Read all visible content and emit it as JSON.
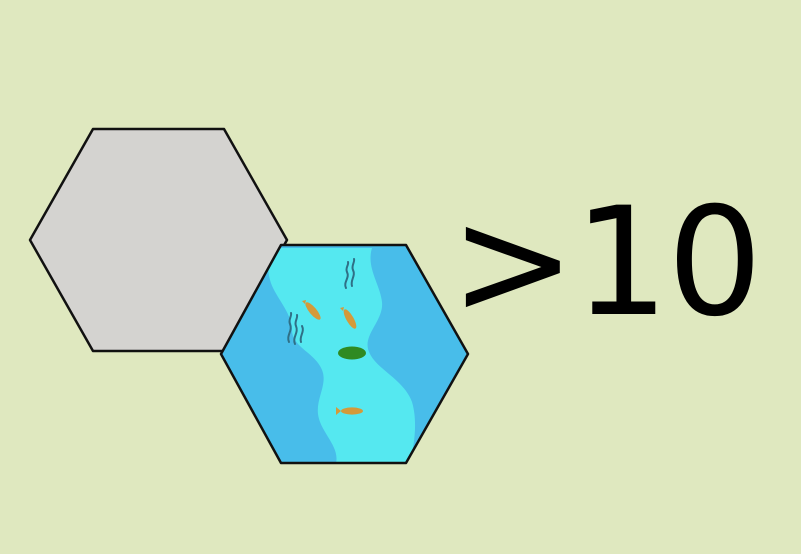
{
  "card": {
    "background_color": "#dfe8bf",
    "count_text": ">10",
    "tiles": [
      {
        "terrain": "empty",
        "icon": "empty-hex-tile",
        "fill_color": "#d4d3d0"
      },
      {
        "terrain": "water",
        "icon": "water-hex-tile",
        "fill_color": "#48bdea",
        "river_color": "#55e8f0",
        "fish_color": "#d49a3a",
        "lily_pad_color": "#2f8a22",
        "reed_color": "#2f6f86"
      }
    ]
  }
}
